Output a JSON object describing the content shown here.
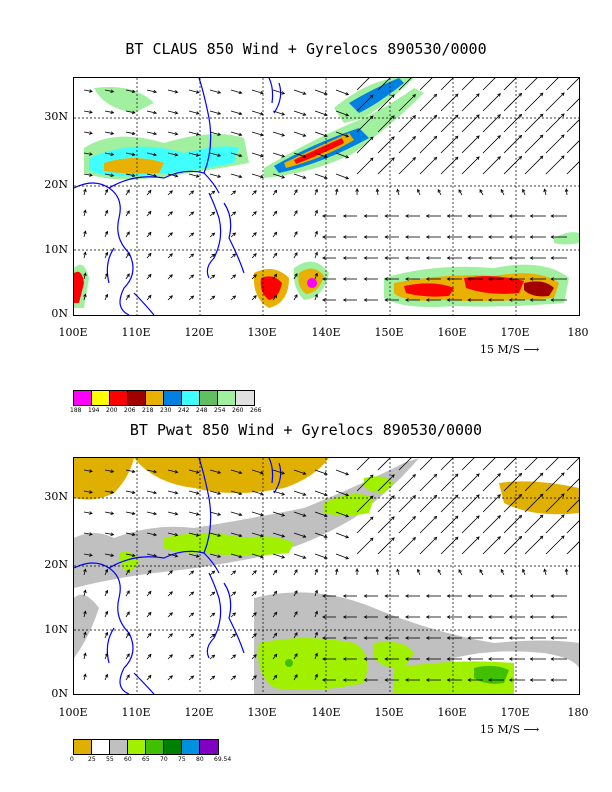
{
  "top": {
    "title": "BT CLAUS 850 Wind + Gyrelocs 890530/0000",
    "lat_labels": [
      "30N",
      "20N",
      "10N",
      "0N"
    ],
    "lon_labels": [
      "100E",
      "110E",
      "120E",
      "130E",
      "140E",
      "150E",
      "160E",
      "170E",
      "180"
    ],
    "wind_ref": "15 M/S ⟶",
    "legend": {
      "colors": [
        "#ff00ff",
        "#ffff00",
        "#ff0000",
        "#a00000",
        "#e8b000",
        "#0080e0",
        "#40ffff",
        "#60c060",
        "#a0f0a0",
        "#e0e0e0"
      ],
      "labels": [
        "188",
        "194",
        "200",
        "206",
        "218",
        "230",
        "242",
        "248",
        "254",
        "260",
        "266"
      ]
    }
  },
  "bottom": {
    "title": "BT Pwat 850 Wind + Gyrelocs 890530/0000",
    "lat_labels": [
      "30N",
      "20N",
      "10N",
      "0N"
    ],
    "lon_labels": [
      "100E",
      "110E",
      "120E",
      "130E",
      "140E",
      "150E",
      "160E",
      "170E",
      "180"
    ],
    "wind_ref": "15 M/S ⟶",
    "legend": {
      "colors": [
        "#e0b000",
        "#ffffff",
        "#c0c0c0",
        "#a0f000",
        "#40c000",
        "#008000",
        "#0090e0",
        "#8000c0"
      ],
      "labels": [
        "0",
        "25",
        "55",
        "60",
        "65",
        "70",
        "75",
        "80",
        "69.54"
      ]
    }
  },
  "map": {
    "lon_range": [
      100,
      180
    ],
    "lat_range": [
      0,
      35
    ]
  }
}
